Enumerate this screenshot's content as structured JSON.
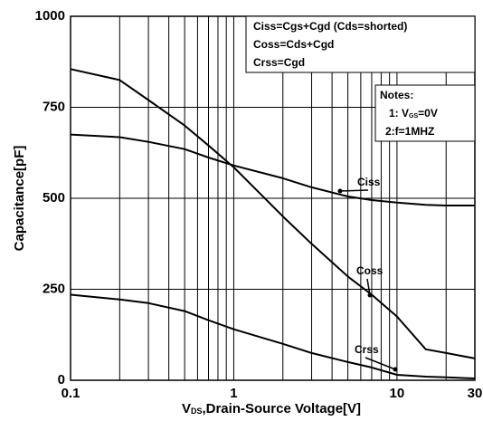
{
  "chart_data": {
    "type": "line",
    "xlabel": {
      "main": "V",
      "sub": "DS",
      "rest": ",Drain-Source Voltage[V]"
    },
    "ylabel": "Capacitance[pF]",
    "x": [
      0.1,
      0.2,
      0.3,
      0.5,
      0.7,
      1,
      2,
      3,
      5,
      7,
      10,
      15,
      20,
      30
    ],
    "series": [
      {
        "name": "Ciss",
        "color": "#000000",
        "values": [
          675,
          668,
          655,
          635,
          612,
          590,
          555,
          530,
          505,
          495,
          488,
          482,
          480,
          480
        ]
      },
      {
        "name": "Coss",
        "color": "#000000",
        "values": [
          855,
          825,
          770,
          700,
          645,
          585,
          450,
          375,
          285,
          235,
          175,
          85,
          75,
          60
        ]
      },
      {
        "name": "Crss",
        "color": "#000000",
        "values": [
          235,
          222,
          212,
          190,
          165,
          140,
          100,
          75,
          50,
          35,
          15,
          10,
          8,
          5
        ]
      }
    ],
    "xlim": [
      0.1,
      30
    ],
    "ylim": [
      0,
      1000
    ],
    "xticks": [
      0.1,
      1,
      10,
      30
    ],
    "yticks": [
      0,
      250,
      500,
      750,
      1000
    ],
    "xgrid": [
      0.2,
      0.3,
      0.4,
      0.5,
      0.6,
      0.7,
      0.8,
      0.9,
      2,
      3,
      4,
      5,
      6,
      7,
      8,
      9,
      20
    ],
    "xlog": true,
    "grid": true,
    "legend_text": [
      "Ciss=Cgs+Cgd (Cds=shorted)",
      "Coss=Cds+Cgd",
      "Crss=Cgd"
    ],
    "notes": {
      "title": "Notes:",
      "line1": {
        "main": "1: V",
        "sub": "GS",
        "rest": "=0V"
      },
      "line2": "2:f=1MHZ"
    }
  }
}
